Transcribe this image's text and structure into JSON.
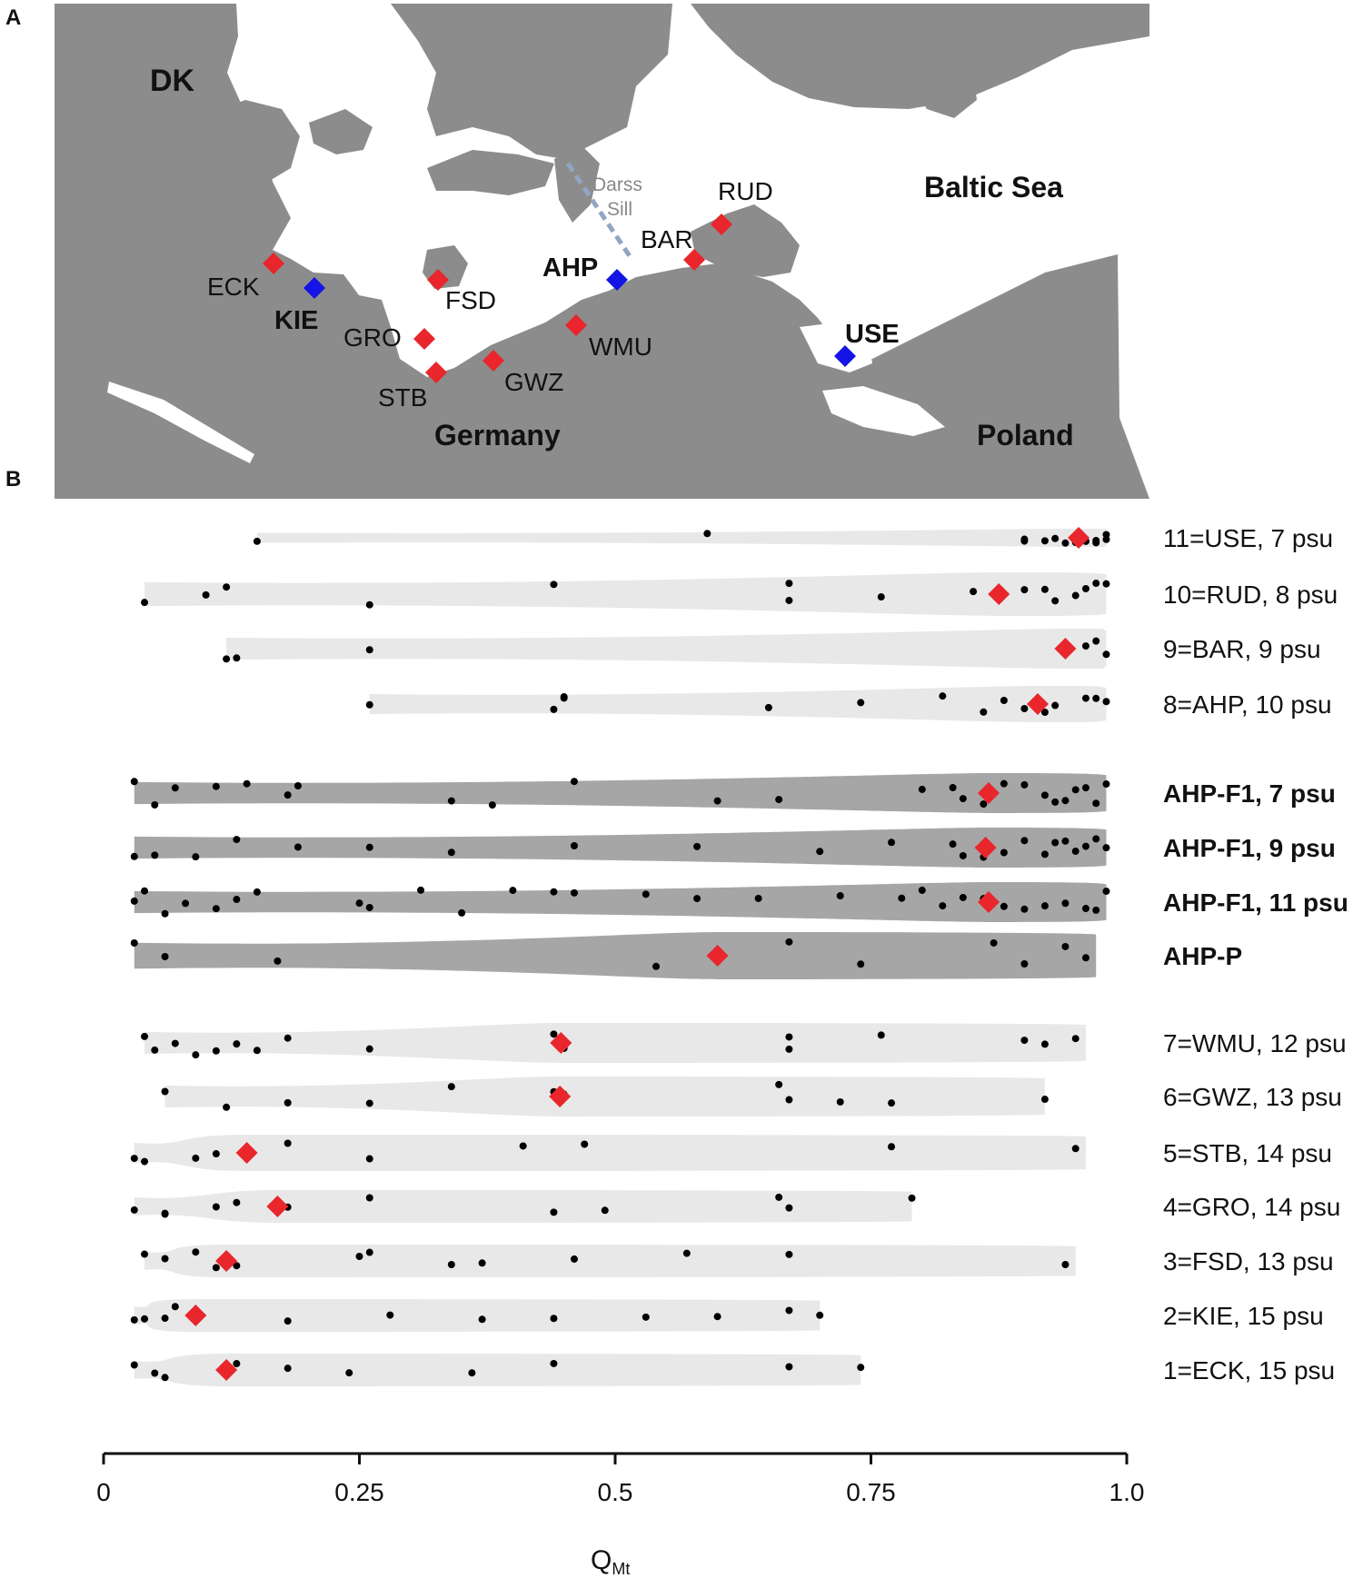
{
  "panels": {
    "a": "A",
    "b": "B"
  },
  "map": {
    "land_color": "#8c8c8c",
    "sea_color": "#ffffff",
    "region_labels": [
      {
        "id": "dk",
        "text": "DK"
      },
      {
        "id": "germany",
        "text": "Germany"
      },
      {
        "id": "poland",
        "text": "Poland"
      },
      {
        "id": "baltic",
        "text": "Baltic Sea"
      }
    ],
    "sill_label": [
      "Darss",
      "Sill"
    ],
    "sites": [
      {
        "code": "ECK",
        "type": "red"
      },
      {
        "code": "KIE",
        "type": "blue"
      },
      {
        "code": "FSD",
        "type": "red"
      },
      {
        "code": "GRO",
        "type": "red"
      },
      {
        "code": "STB",
        "type": "red"
      },
      {
        "code": "GWZ",
        "type": "red"
      },
      {
        "code": "WMU",
        "type": "red"
      },
      {
        "code": "AHP",
        "type": "blue"
      },
      {
        "code": "BAR",
        "type": "red"
      },
      {
        "code": "RUD",
        "type": "red"
      },
      {
        "code": "USE",
        "type": "blue"
      }
    ],
    "marker_colors": {
      "red": "#e8262c",
      "blue": "#1414e6"
    }
  },
  "chart_data": {
    "type": "violin",
    "xlabel": "Q",
    "xlabel_sub": "Mt",
    "xlim": [
      0,
      1
    ],
    "xticks": [
      0,
      0.25,
      0.5,
      0.75,
      1.0
    ],
    "xtick_labels": [
      "0",
      "0.25",
      "0.5",
      "0.75",
      "1.0"
    ],
    "mean_marker_color": "#e8262c",
    "point_color": "#000000",
    "rows": [
      {
        "label": "11=USE, 7 psu",
        "bold": false,
        "fill": "#e8e8e8",
        "range": [
          0.15,
          0.98
        ],
        "mean": 0.953,
        "points": [
          0.15,
          0.59,
          0.9,
          0.9,
          0.92,
          0.93,
          0.94,
          0.95,
          0.96,
          0.97,
          0.97,
          0.98,
          0.98
        ]
      },
      {
        "label": "10=RUD, 8 psu",
        "bold": false,
        "fill": "#e8e8e8",
        "range": [
          0.04,
          0.98
        ],
        "mean": 0.875,
        "points": [
          0.04,
          0.1,
          0.12,
          0.26,
          0.44,
          0.67,
          0.67,
          0.76,
          0.85,
          0.9,
          0.92,
          0.93,
          0.95,
          0.96,
          0.97,
          0.98
        ]
      },
      {
        "label": "9=BAR, 9 psu",
        "bold": false,
        "fill": "#e8e8e8",
        "range": [
          0.12,
          0.98
        ],
        "mean": 0.94,
        "points": [
          0.12,
          0.13,
          0.26,
          0.96,
          0.97,
          0.98
        ]
      },
      {
        "label": "8=AHP, 10 psu",
        "bold": false,
        "fill": "#e8e8e8",
        "range": [
          0.26,
          0.98
        ],
        "mean": 0.913,
        "points": [
          0.26,
          0.44,
          0.45,
          0.45,
          0.65,
          0.74,
          0.82,
          0.86,
          0.88,
          0.9,
          0.92,
          0.93,
          0.96,
          0.97,
          0.98
        ]
      },
      {
        "label": "AHP-F1, 7 psu",
        "bold": true,
        "fill": "#a6a6a6",
        "range": [
          0.03,
          0.98
        ],
        "mean": 0.865,
        "points": [
          0.03,
          0.05,
          0.07,
          0.11,
          0.14,
          0.18,
          0.19,
          0.34,
          0.38,
          0.46,
          0.6,
          0.66,
          0.8,
          0.83,
          0.84,
          0.86,
          0.88,
          0.9,
          0.92,
          0.93,
          0.94,
          0.95,
          0.96,
          0.97,
          0.98
        ]
      },
      {
        "label": "AHP-F1, 9 psu",
        "bold": true,
        "fill": "#a6a6a6",
        "range": [
          0.03,
          0.98
        ],
        "mean": 0.862,
        "points": [
          0.03,
          0.05,
          0.09,
          0.13,
          0.19,
          0.26,
          0.34,
          0.46,
          0.58,
          0.7,
          0.77,
          0.83,
          0.84,
          0.86,
          0.88,
          0.9,
          0.92,
          0.93,
          0.94,
          0.95,
          0.96,
          0.97,
          0.98
        ]
      },
      {
        "label": "AHP-F1, 11 psu",
        "bold": true,
        "fill": "#a6a6a6",
        "range": [
          0.03,
          0.98
        ],
        "mean": 0.865,
        "points": [
          0.03,
          0.04,
          0.06,
          0.08,
          0.11,
          0.13,
          0.15,
          0.25,
          0.26,
          0.31,
          0.35,
          0.4,
          0.44,
          0.46,
          0.53,
          0.58,
          0.64,
          0.72,
          0.78,
          0.8,
          0.82,
          0.84,
          0.86,
          0.88,
          0.9,
          0.92,
          0.94,
          0.96,
          0.97,
          0.98
        ]
      },
      {
        "label": "AHP-P",
        "bold": true,
        "fill": "#a6a6a6",
        "range": [
          0.03,
          0.97
        ],
        "mean": 0.6,
        "points": [
          0.03,
          0.06,
          0.17,
          0.54,
          0.67,
          0.74,
          0.87,
          0.9,
          0.94,
          0.96
        ]
      },
      {
        "label": "7=WMU, 12 psu",
        "bold": false,
        "fill": "#e8e8e8",
        "range": [
          0.04,
          0.96
        ],
        "mean": 0.447,
        "points": [
          0.04,
          0.05,
          0.07,
          0.09,
          0.11,
          0.13,
          0.15,
          0.18,
          0.26,
          0.44,
          0.45,
          0.67,
          0.67,
          0.76,
          0.9,
          0.92,
          0.95
        ]
      },
      {
        "label": "6=GWZ, 13 psu",
        "bold": false,
        "fill": "#e8e8e8",
        "range": [
          0.06,
          0.92
        ],
        "mean": 0.446,
        "points": [
          0.06,
          0.12,
          0.18,
          0.26,
          0.34,
          0.44,
          0.45,
          0.66,
          0.67,
          0.72,
          0.77,
          0.92
        ]
      },
      {
        "label": "5=STB, 14 psu",
        "bold": false,
        "fill": "#e8e8e8",
        "range": [
          0.03,
          0.96
        ],
        "mean": 0.14,
        "points": [
          0.03,
          0.04,
          0.09,
          0.11,
          0.18,
          0.26,
          0.41,
          0.47,
          0.77,
          0.95
        ]
      },
      {
        "label": "4=GRO, 14 psu",
        "bold": false,
        "fill": "#e8e8e8",
        "range": [
          0.03,
          0.79
        ],
        "mean": 0.17,
        "points": [
          0.03,
          0.06,
          0.06,
          0.11,
          0.13,
          0.18,
          0.26,
          0.44,
          0.49,
          0.66,
          0.67,
          0.79
        ]
      },
      {
        "label": "3=FSD, 13 psu",
        "bold": false,
        "fill": "#e8e8e8",
        "range": [
          0.04,
          0.95
        ],
        "mean": 0.12,
        "points": [
          0.04,
          0.06,
          0.09,
          0.11,
          0.13,
          0.25,
          0.26,
          0.34,
          0.37,
          0.46,
          0.57,
          0.67,
          0.94
        ]
      },
      {
        "label": "2=KIE, 15 psu",
        "bold": false,
        "fill": "#e8e8e8",
        "range": [
          0.03,
          0.7
        ],
        "mean": 0.09,
        "points": [
          0.03,
          0.04,
          0.06,
          0.07,
          0.18,
          0.28,
          0.37,
          0.44,
          0.53,
          0.6,
          0.67,
          0.7
        ]
      },
      {
        "label": "1=ECK, 15 psu",
        "bold": false,
        "fill": "#e8e8e8",
        "range": [
          0.03,
          0.74
        ],
        "mean": 0.12,
        "points": [
          0.03,
          0.05,
          0.06,
          0.12,
          0.13,
          0.18,
          0.24,
          0.36,
          0.44,
          0.67,
          0.74
        ]
      }
    ]
  }
}
